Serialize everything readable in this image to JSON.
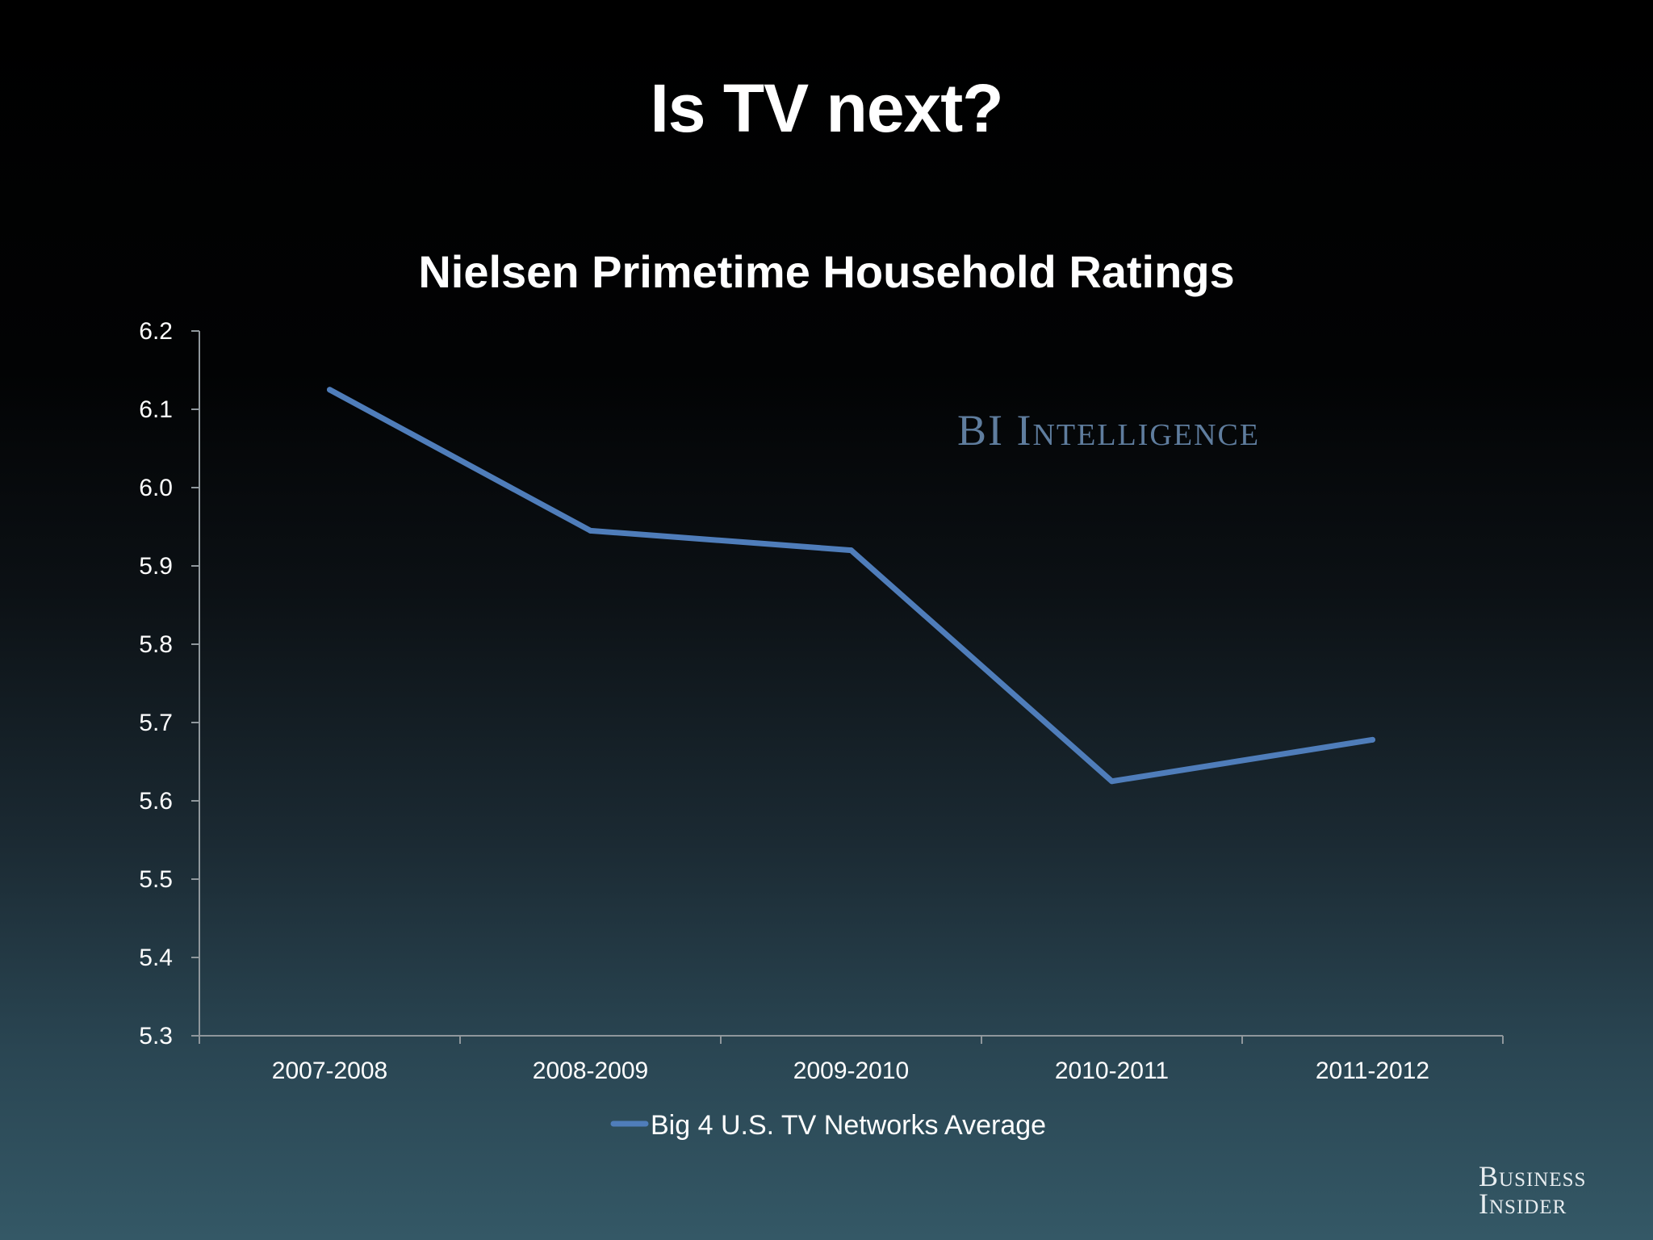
{
  "slide": {
    "title": "Is TV next?"
  },
  "watermark": "BI Intelligence",
  "logo": {
    "line1": "Business",
    "line2": "Insider"
  },
  "chart_data": {
    "type": "line",
    "title": "Nielsen Primetime Household Ratings",
    "xlabel": "",
    "ylabel": "",
    "categories": [
      "2007-2008",
      "2008-2009",
      "2009-2010",
      "2010-2011",
      "2011-2012"
    ],
    "series": [
      {
        "name": "Big 4 U.S. TV Networks Average",
        "values": [
          6.125,
          5.945,
          5.92,
          5.625,
          5.678
        ],
        "color": "#4f7dba"
      }
    ],
    "ylim": [
      5.3,
      6.2
    ],
    "yticks": [
      "5.3",
      "5.4",
      "5.5",
      "5.6",
      "5.7",
      "5.8",
      "5.9",
      "6.0",
      "6.1",
      "6.2"
    ],
    "grid": false,
    "legend": "bottom"
  }
}
